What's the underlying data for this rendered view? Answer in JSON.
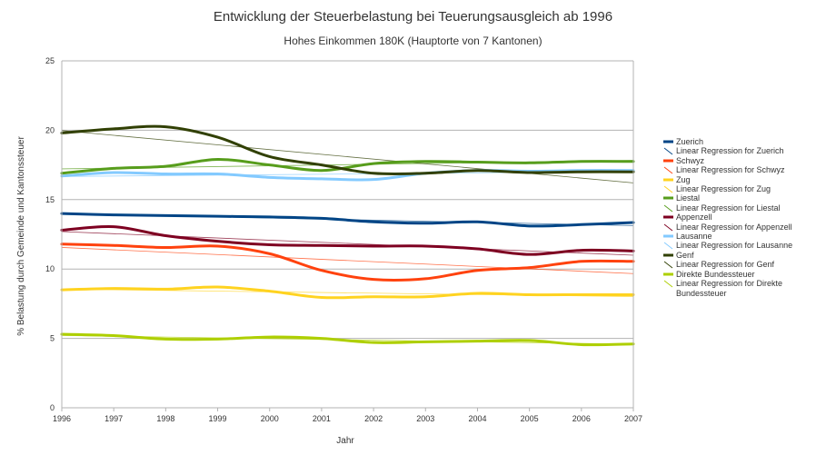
{
  "chart_data": {
    "type": "line",
    "title": "Entwicklung der Steuerbelastung bei Teuerungsausgleich ab 1996",
    "subtitle": "Hohes Einkommen 180K (Hauptorte von 7 Kantonen)",
    "xlabel": "Jahr",
    "ylabel": "% Belastung durch Gemeinde und Kantonssteuer",
    "xlim": [
      1996,
      2007
    ],
    "ylim": [
      0,
      25
    ],
    "x_ticks": [
      "1996",
      "1997",
      "1998",
      "1999",
      "2000",
      "2001",
      "2002",
      "2003",
      "2004",
      "2005",
      "2006",
      "2007"
    ],
    "y_ticks": [
      "0",
      "5",
      "10",
      "15",
      "20",
      "25"
    ],
    "grid": true,
    "legend_position": "right",
    "x": [
      1996,
      1997,
      1998,
      1999,
      2000,
      2001,
      2002,
      2003,
      2004,
      2005,
      2006,
      2007
    ],
    "series": [
      {
        "name": "Zuerich",
        "color": "#004586",
        "values": [
          14.0,
          13.9,
          13.85,
          13.8,
          13.75,
          13.65,
          13.4,
          13.3,
          13.4,
          13.1,
          13.2,
          13.35
        ],
        "regression_label": "Linear Regression for Zuerich"
      },
      {
        "name": "Schwyz",
        "color": "#ff420e",
        "values": [
          11.8,
          11.7,
          11.55,
          11.65,
          11.1,
          9.9,
          9.25,
          9.3,
          9.9,
          10.1,
          10.55,
          10.55
        ],
        "regression_label": "Linear Regression for Schwyz"
      },
      {
        "name": "Zug",
        "color": "#ffd320",
        "values": [
          8.5,
          8.6,
          8.55,
          8.7,
          8.4,
          7.95,
          8.0,
          8.0,
          8.25,
          8.15,
          8.15,
          8.15
        ],
        "regression_label": "Linear Regression for Zug"
      },
      {
        "name": "Liestal",
        "color": "#579d1c",
        "values": [
          16.9,
          17.25,
          17.4,
          17.9,
          17.5,
          17.1,
          17.6,
          17.75,
          17.7,
          17.65,
          17.75,
          17.75
        ],
        "regression_label": "Linear Regression for Liestal"
      },
      {
        "name": "Appenzell",
        "color": "#7e0021",
        "values": [
          12.8,
          13.05,
          12.4,
          12.0,
          11.75,
          11.7,
          11.65,
          11.65,
          11.45,
          11.05,
          11.35,
          11.3
        ],
        "regression_label": "Linear Regression for Appenzell"
      },
      {
        "name": "Lausanne",
        "color": "#83caff",
        "values": [
          16.7,
          16.95,
          16.85,
          16.85,
          16.6,
          16.5,
          16.45,
          16.9,
          17.1,
          17.05,
          17.1,
          17.1
        ],
        "regression_label": "Linear Regression for Lausanne"
      },
      {
        "name": "Genf",
        "color": "#314004",
        "values": [
          19.8,
          20.1,
          20.25,
          19.5,
          18.1,
          17.5,
          16.9,
          16.9,
          17.1,
          16.95,
          17.0,
          17.0
        ],
        "regression_label": "Linear Regression for Genf"
      },
      {
        "name": "Direkte Bundessteuer",
        "color": "#aecf00",
        "values": [
          5.3,
          5.2,
          4.95,
          4.95,
          5.1,
          5.0,
          4.7,
          4.75,
          4.8,
          4.85,
          4.55,
          4.6
        ],
        "regression_label": "Linear Regression for Direkte Bundessteuer"
      }
    ]
  }
}
